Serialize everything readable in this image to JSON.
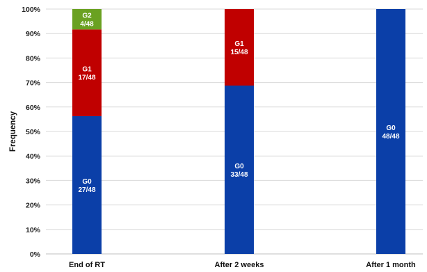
{
  "chart_data": {
    "type": "bar",
    "stacked": true,
    "title": "",
    "xlabel": "",
    "ylabel": "Frequency",
    "ylim": [
      0,
      100
    ],
    "yticks": [
      "0%",
      "10%",
      "20%",
      "30%",
      "40%",
      "50%",
      "60%",
      "70%",
      "80%",
      "90%",
      "100%"
    ],
    "grid": true,
    "categories": [
      "End of RT",
      "After 2 weeks",
      "After 1 month"
    ],
    "series": [
      {
        "name": "G0",
        "color": "#0b3fa8",
        "values": [
          56.25,
          68.75,
          100
        ],
        "labels": [
          "27/48",
          "33/48",
          "48/48"
        ]
      },
      {
        "name": "G1",
        "color": "#c00000",
        "values": [
          35.42,
          31.25,
          0
        ],
        "labels": [
          "17/48",
          "15/48",
          ""
        ]
      },
      {
        "name": "G2",
        "color": "#6aa121",
        "values": [
          8.33,
          0,
          0
        ],
        "labels": [
          "4/48",
          "",
          ""
        ]
      }
    ]
  }
}
